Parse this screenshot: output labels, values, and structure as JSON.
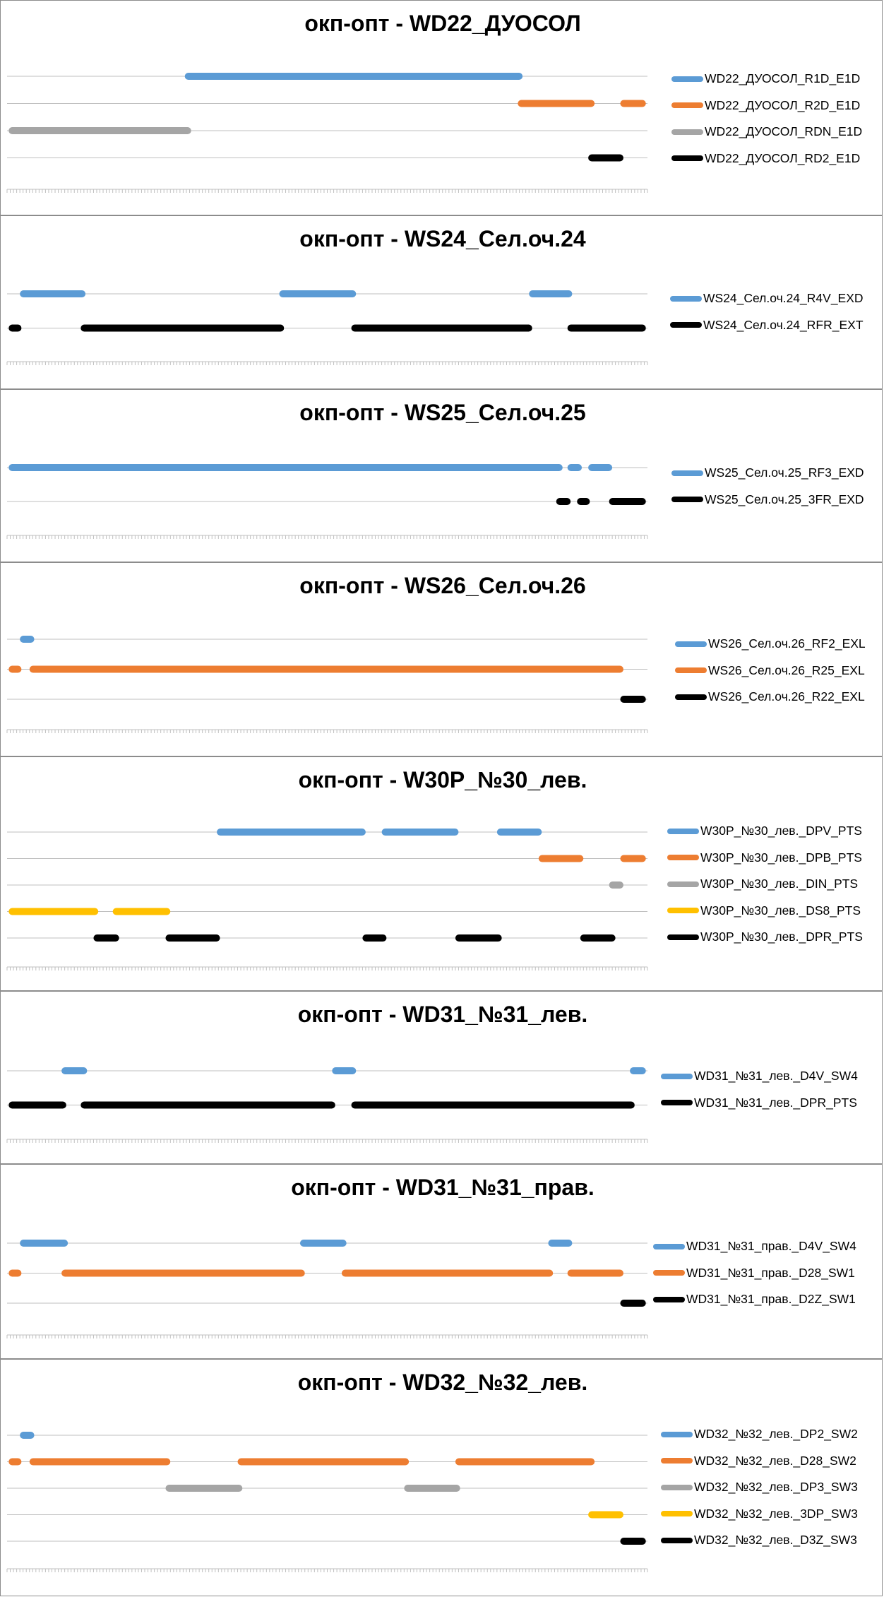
{
  "chart_data": [
    {
      "type": "gantt",
      "title": "окп-опт - WD22_ДУОСОЛ",
      "grid": true,
      "legend_position": "right",
      "xlim": [
        0,
        200
      ],
      "series": [
        {
          "name": "WD22_ДУОСОЛ_R1D_E1D",
          "color": "#5b9bd5",
          "segments": [
            [
              55.5,
              161
            ]
          ]
        },
        {
          "name": "WD22_ДУОСОЛ_R2D_E1D",
          "color": "#ed7d31",
          "segments": [
            [
              159.5,
              183.5
            ],
            [
              191.5,
              199.5
            ]
          ]
        },
        {
          "name": "WD22_ДУОСОЛ_RDN_E1D",
          "color": "#a5a5a5",
          "segments": [
            [
              0.5,
              57.5
            ]
          ]
        },
        {
          "name": "WD22_ДУОСОЛ_RD2_E1D",
          "color": "#000000",
          "segments": [
            [
              181.5,
              192.5
            ]
          ]
        }
      ]
    },
    {
      "type": "gantt",
      "title": "окп-опт - WS24_Сел.оч.24",
      "grid": true,
      "legend_position": "right",
      "xlim": [
        0,
        200
      ],
      "series": [
        {
          "name": "WS24_Сел.оч.24_R4V_EXD",
          "color": "#5b9bd5",
          "segments": [
            [
              4,
              24.5
            ],
            [
              85,
              109
            ],
            [
              163,
              176.5
            ]
          ]
        },
        {
          "name": "WS24_Сел.оч.24_RFR_EXT",
          "color": "#000000",
          "segments": [
            [
              0.5,
              4.5
            ],
            [
              23,
              86.5
            ],
            [
              107.5,
              164
            ],
            [
              175,
              199.5
            ]
          ]
        }
      ]
    },
    {
      "type": "gantt",
      "title": "окп-опт - WS25_Сел.оч.25",
      "grid": true,
      "legend_position": "right",
      "xlim": [
        0,
        200
      ],
      "series": [
        {
          "name": "WS25_Сел.оч.25_RF3_EXD",
          "color": "#5b9bd5",
          "segments": [
            [
              0.5,
              173.5
            ],
            [
              175,
              179.5
            ],
            [
              181.5,
              189
            ]
          ]
        },
        {
          "name": "WS25_Сел.оч.25_3FR_EXD",
          "color": "#000000",
          "segments": [
            [
              171.5,
              176
            ],
            [
              178,
              182
            ],
            [
              188,
              199.5
            ]
          ]
        }
      ]
    },
    {
      "type": "gantt",
      "title": "окп-опт - WS26_Сел.оч.26",
      "grid": true,
      "legend_position": "right",
      "xlim": [
        0,
        200
      ],
      "series": [
        {
          "name": "WS26_Сел.оч.26_RF2_EXL",
          "color": "#5b9bd5",
          "segments": [
            [
              4,
              8.5
            ]
          ]
        },
        {
          "name": "WS26_Сел.оч.26_R25_EXL",
          "color": "#ed7d31",
          "segments": [
            [
              0.5,
              4.5
            ],
            [
              7,
              192.5
            ]
          ]
        },
        {
          "name": "WS26_Сел.оч.26_R22_EXL",
          "color": "#000000",
          "segments": [
            [
              191.5,
              199.5
            ]
          ]
        }
      ]
    },
    {
      "type": "gantt",
      "title": "окп-опт - W30P_№30_лев.",
      "grid": true,
      "legend_position": "right",
      "xlim": [
        0,
        200
      ],
      "series": [
        {
          "name": "W30P_№30_лев._DPV_PTS",
          "color": "#5b9bd5",
          "segments": [
            [
              65.5,
              112
            ],
            [
              117,
              141
            ],
            [
              153,
              167
            ]
          ]
        },
        {
          "name": "W30P_№30_лев._DPB_PTS",
          "color": "#ed7d31",
          "segments": [
            [
              166,
              180
            ],
            [
              191.5,
              199.5
            ]
          ]
        },
        {
          "name": "W30P_№30_лев._DIN_PTS",
          "color": "#a5a5a5",
          "segments": [
            [
              188,
              192.5
            ]
          ]
        },
        {
          "name": "W30P_№30_лев._DS8_PTS",
          "color": "#ffc000",
          "segments": [
            [
              0.5,
              28.5
            ],
            [
              33,
              51
            ]
          ]
        },
        {
          "name": "W30P_№30_лев._DPR_PTS",
          "color": "#000000",
          "segments": [
            [
              27,
              35
            ],
            [
              49.5,
              66.5
            ],
            [
              111,
              118.5
            ],
            [
              140,
              154.5
            ],
            [
              179,
              190
            ]
          ]
        }
      ]
    },
    {
      "type": "gantt",
      "title": "окп-опт - WD31_№31_лев.",
      "grid": true,
      "legend_position": "right",
      "xlim": [
        0,
        200
      ],
      "series": [
        {
          "name": "WD31_№31_лев._D4V_SW4",
          "color": "#5b9bd5",
          "segments": [
            [
              17,
              25
            ],
            [
              101.5,
              109
            ],
            [
              194.5,
              199.5
            ]
          ]
        },
        {
          "name": "WD31_№31_лев._DPR_PTS",
          "color": "#000000",
          "segments": [
            [
              0.5,
              18.5
            ],
            [
              23,
              102.5
            ],
            [
              107.5,
              196
            ]
          ]
        }
      ]
    },
    {
      "type": "gantt",
      "title": "окп-опт - WD31_№31_прав.",
      "grid": true,
      "legend_position": "right",
      "xlim": [
        0,
        200
      ],
      "series": [
        {
          "name": "WD31_№31_прав._D4V_SW4",
          "color": "#5b9bd5",
          "segments": [
            [
              4,
              19
            ],
            [
              91.5,
              106
            ],
            [
              169,
              176.5
            ]
          ]
        },
        {
          "name": "WD31_№31_прав._D28_SW1",
          "color": "#ed7d31",
          "segments": [
            [
              0.5,
              4.5
            ],
            [
              17,
              93
            ],
            [
              104.5,
              170.5
            ],
            [
              175,
              192.5
            ]
          ]
        },
        {
          "name": "WD31_№31_прав._D2Z_SW1",
          "color": "#000000",
          "segments": [
            [
              191.5,
              199.5
            ]
          ]
        }
      ]
    },
    {
      "type": "gantt",
      "title": "окп-опт - WD32_№32_лев.",
      "grid": true,
      "legend_position": "right",
      "xlim": [
        0,
        200
      ],
      "series": [
        {
          "name": "WD32_№32_лев._DP2_SW2",
          "color": "#5b9bd5",
          "segments": [
            [
              4,
              8.5
            ]
          ]
        },
        {
          "name": "WD32_№32_лев._D28_SW2",
          "color": "#ed7d31",
          "segments": [
            [
              0.5,
              4.5
            ],
            [
              7,
              51
            ],
            [
              72,
              125.5
            ],
            [
              140,
              183.5
            ]
          ]
        },
        {
          "name": "WD32_№32_лев._DP3_SW3",
          "color": "#a5a5a5",
          "segments": [
            [
              49.5,
              73.5
            ],
            [
              124,
              141.5
            ]
          ]
        },
        {
          "name": "WD32_№32_лев._3DP_SW3",
          "color": "#ffc000",
          "segments": [
            [
              181.5,
              192.5
            ]
          ]
        },
        {
          "name": "WD32_№32_лев._D3Z_SW3",
          "color": "#000000",
          "segments": [
            [
              191.5,
              199.5
            ]
          ]
        }
      ]
    }
  ]
}
